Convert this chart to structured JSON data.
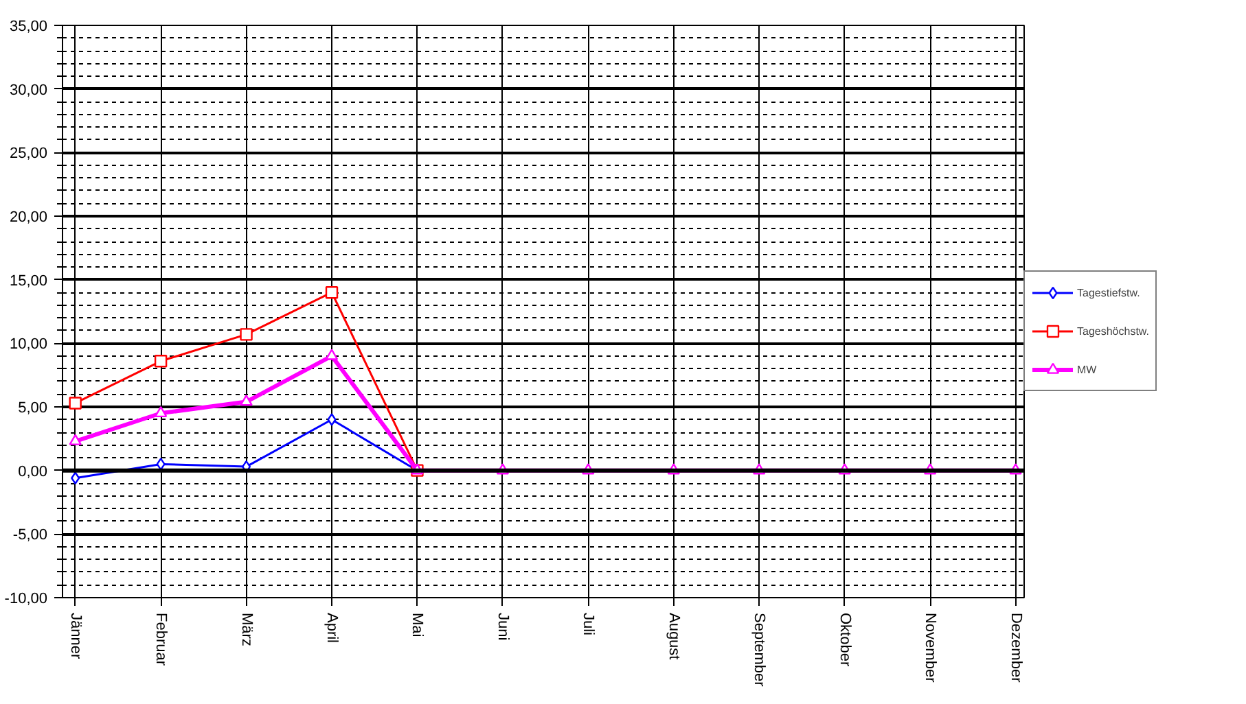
{
  "chart_data": {
    "type": "line",
    "categories": [
      "Jänner",
      "Februar",
      "März",
      "April",
      "Mai",
      "Juni",
      "Juli",
      "August",
      "September",
      "Oktober",
      "November",
      "Dezember"
    ],
    "series": [
      {
        "name": "Tagestiefstw.",
        "color": "#0000ff",
        "marker": "diamond",
        "values": [
          -0.6,
          0.5,
          0.3,
          4.0,
          0,
          null,
          null,
          null,
          null,
          null,
          null,
          null
        ]
      },
      {
        "name": "Tageshöchstw.",
        "color": "#ff0000",
        "marker": "square",
        "values": [
          5.3,
          8.6,
          10.7,
          14.0,
          0,
          null,
          null,
          null,
          null,
          null,
          null,
          null
        ]
      },
      {
        "name": "MW",
        "color": "#ff00ff",
        "marker": "triangle",
        "values": [
          2.3,
          4.5,
          5.4,
          9.0,
          0,
          0,
          0,
          0,
          0,
          0,
          0,
          0
        ]
      }
    ],
    "ylim": [
      -10,
      35
    ],
    "yticks": [
      {
        "value": -10,
        "label": "-10,00"
      },
      {
        "value": -5,
        "label": "-5,00"
      },
      {
        "value": 0,
        "label": "0,00"
      },
      {
        "value": 5,
        "label": "5,00"
      },
      {
        "value": 10,
        "label": "10,00"
      },
      {
        "value": 15,
        "label": "15,00"
      },
      {
        "value": 20,
        "label": "20,00"
      },
      {
        "value": 25,
        "label": "25,00"
      },
      {
        "value": 30,
        "label": "30,00"
      },
      {
        "value": 35,
        "label": "35,00"
      }
    ],
    "grid": true,
    "legend": "right",
    "line_style": "solid"
  }
}
